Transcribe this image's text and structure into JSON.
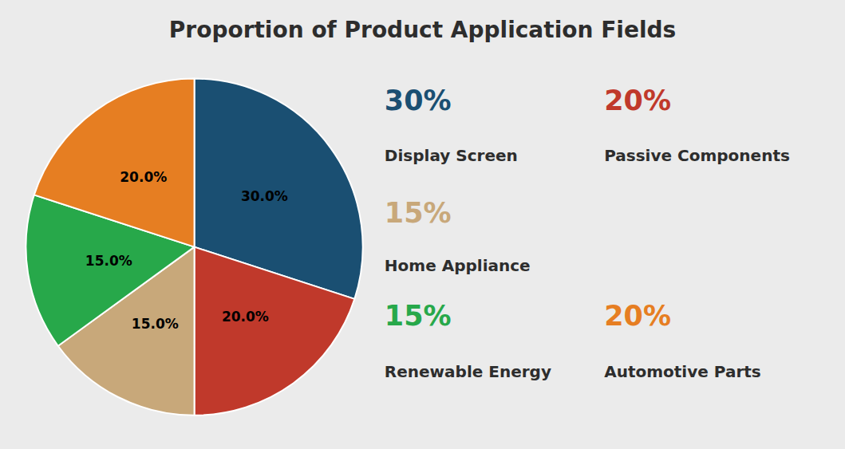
{
  "chart_data": {
    "type": "pie",
    "title": "Proportion of Product Application Fields",
    "categories": [
      "Display Screen",
      "Passive Components",
      "Home Appliance",
      "Renewable Energy",
      "Automotive Parts"
    ],
    "values": [
      30,
      20,
      15,
      15,
      20
    ],
    "value_labels": [
      "30.0%",
      "20.0%",
      "15.0%",
      "15.0%",
      "20.0%"
    ],
    "colors": [
      "#1a4f72",
      "#c0392b",
      "#c8a87a",
      "#27a84a",
      "#e67e22"
    ],
    "data_labels": true,
    "legend": "right",
    "annotations": [
      "30%",
      "20%",
      "15%",
      "15%",
      "20%"
    ]
  }
}
